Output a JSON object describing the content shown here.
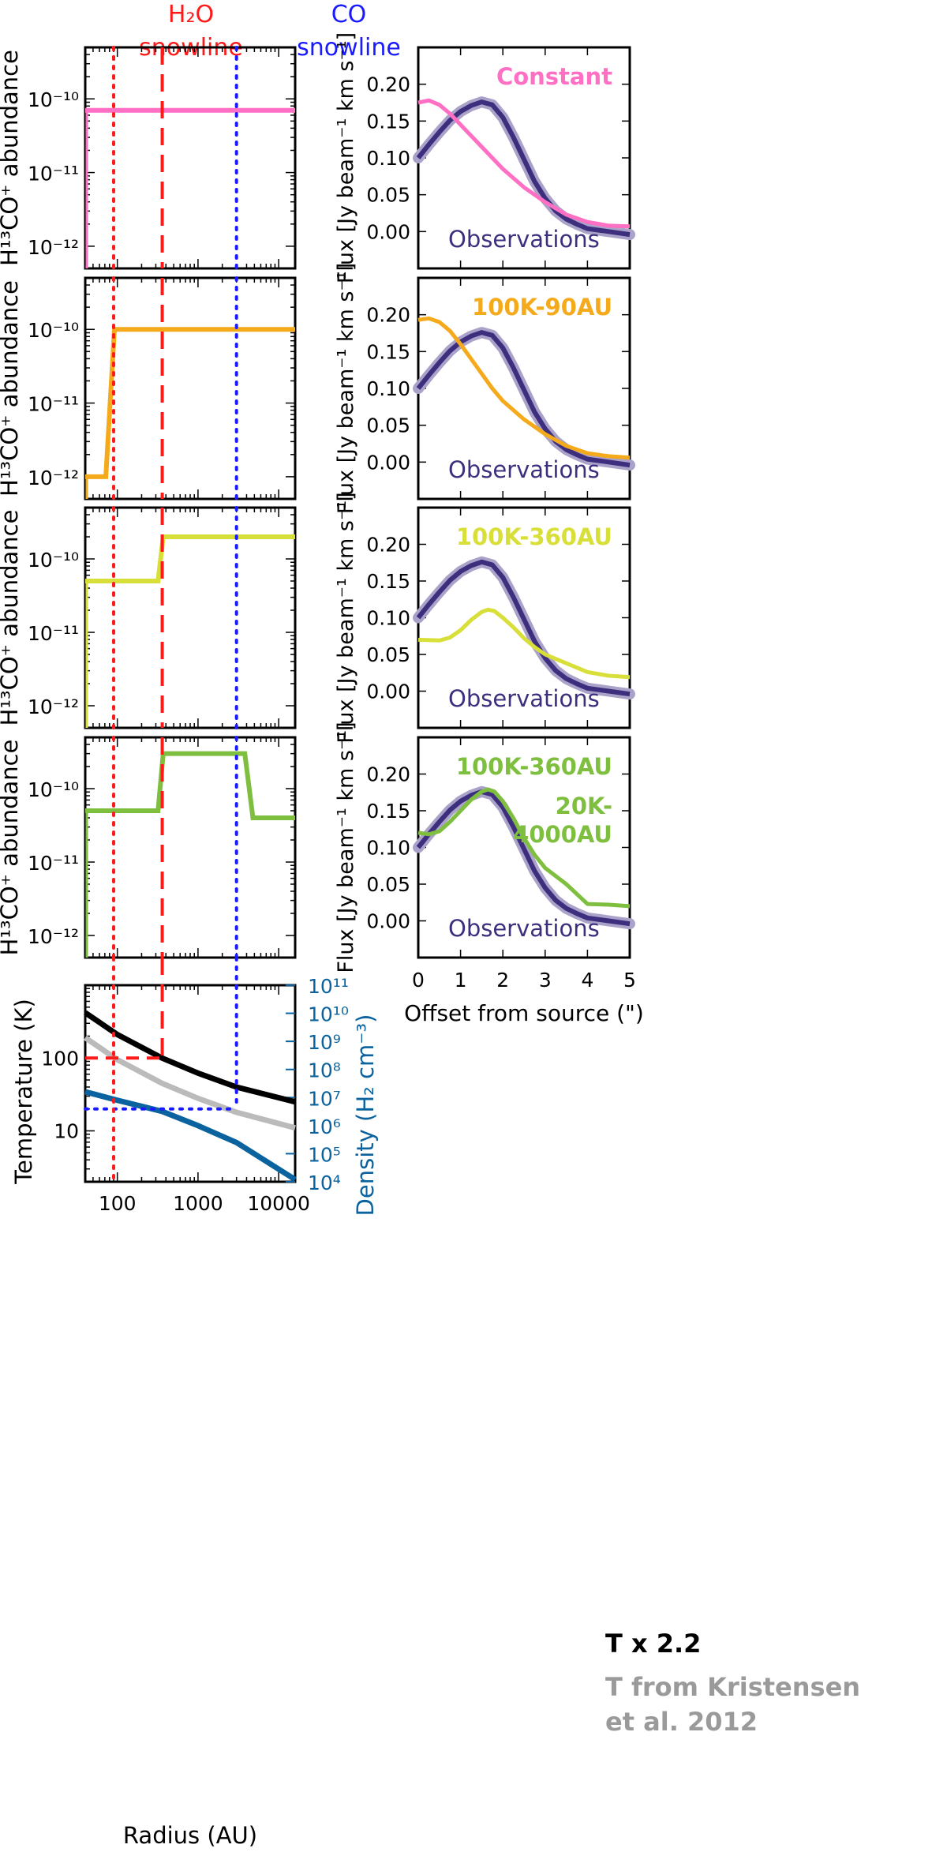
{
  "header": {
    "h2o_line1": "H₂O",
    "h2o_line2": "snowline",
    "co_line1": "CO",
    "co_line2": "snowline"
  },
  "colors": {
    "h2o": "#ff1a1a",
    "co": "#1a1aff",
    "constant": "#ff6fc3",
    "model_90au": "#f5aa1c",
    "model_360au": "#d8df38",
    "model_two_jump": "#7fbf3f",
    "observations": "#3d2f7e",
    "observations_band": "#aaa2c8",
    "temperature": "#000000",
    "temperature_kristensen": "#bbbbbb",
    "density": "#0a639f"
  },
  "chart_data": [
    {
      "panel": "abundance-constant",
      "type": "line",
      "xscale": "log",
      "yscale": "log",
      "xlim": [
        40,
        16000
      ],
      "ylim": [
        5e-13,
        5e-10
      ],
      "ylabel": "H¹³CO⁺ abundance",
      "yticks": [
        "10⁻¹⁰",
        "10⁻¹¹",
        "10⁻¹²"
      ],
      "series": [
        {
          "name": "Constant",
          "color": "#ff6fc3",
          "x": [
            40,
            16000
          ],
          "y": [
            7e-11,
            7e-11
          ]
        }
      ]
    },
    {
      "panel": "flux-constant",
      "type": "line",
      "xlim": [
        0,
        5
      ],
      "ylim": [
        -0.05,
        0.25
      ],
      "ylabel": "Flux [Jy beam⁻¹ km s⁻¹]",
      "yticks": [
        "0.20",
        "0.15",
        "0.10",
        "0.05",
        "0.00"
      ],
      "model_label": "Constant",
      "obs_label": "Observations",
      "series": [
        {
          "name": "Observations",
          "x": [
            0,
            0.25,
            0.5,
            0.75,
            1,
            1.25,
            1.5,
            1.75,
            2,
            2.25,
            2.5,
            2.75,
            3,
            3.25,
            3.5,
            3.75,
            4,
            4.5,
            5
          ],
          "y": [
            0.1,
            0.118,
            0.135,
            0.151,
            0.163,
            0.171,
            0.176,
            0.172,
            0.155,
            0.128,
            0.098,
            0.068,
            0.045,
            0.028,
            0.017,
            0.01,
            0.004,
            0,
            -0.004
          ]
        },
        {
          "name": "Constant",
          "x": [
            0,
            0.25,
            0.5,
            0.75,
            1,
            1.25,
            1.5,
            1.75,
            2,
            2.5,
            3,
            3.5,
            4,
            4.5,
            5
          ],
          "y": [
            0.175,
            0.178,
            0.172,
            0.16,
            0.145,
            0.13,
            0.115,
            0.1,
            0.085,
            0.06,
            0.04,
            0.023,
            0.013,
            0.008,
            0.007
          ]
        }
      ]
    },
    {
      "panel": "abundance-100K-90AU",
      "type": "line",
      "xscale": "log",
      "yscale": "log",
      "xlim": [
        40,
        16000
      ],
      "ylim": [
        5e-13,
        5e-10
      ],
      "ylabel": "H¹³CO⁺ abundance",
      "yticks": [
        "10⁻¹⁰",
        "10⁻¹¹",
        "10⁻¹²"
      ],
      "series": [
        {
          "name": "100K-90AU",
          "color": "#f5aa1c",
          "x": [
            40,
            72,
            92,
            16000
          ],
          "y": [
            1e-12,
            1e-12,
            1e-10,
            1e-10
          ]
        }
      ]
    },
    {
      "panel": "flux-100K-90AU",
      "type": "line",
      "xlim": [
        0,
        5
      ],
      "ylim": [
        -0.05,
        0.25
      ],
      "ylabel": "Flux [Jy beam⁻¹ km s⁻¹]",
      "yticks": [
        "0.20",
        "0.15",
        "0.10",
        "0.05",
        "0.00"
      ],
      "model_label": "100K-90AU",
      "obs_label": "Observations",
      "series": [
        {
          "name": "Observations",
          "x": [
            0,
            0.25,
            0.5,
            0.75,
            1,
            1.25,
            1.5,
            1.75,
            2,
            2.25,
            2.5,
            2.75,
            3,
            3.25,
            3.5,
            3.75,
            4,
            4.5,
            5
          ],
          "y": [
            0.1,
            0.118,
            0.135,
            0.151,
            0.163,
            0.171,
            0.176,
            0.172,
            0.155,
            0.128,
            0.098,
            0.068,
            0.045,
            0.028,
            0.017,
            0.01,
            0.004,
            0,
            -0.004
          ]
        },
        {
          "name": "100K-90AU",
          "x": [
            0,
            0.25,
            0.5,
            0.75,
            1,
            1.25,
            1.5,
            1.75,
            2,
            2.5,
            3,
            3.5,
            4,
            4.5,
            5
          ],
          "y": [
            0.193,
            0.195,
            0.19,
            0.178,
            0.16,
            0.14,
            0.12,
            0.1,
            0.083,
            0.058,
            0.038,
            0.022,
            0.012,
            0.008,
            0.006
          ]
        }
      ]
    },
    {
      "panel": "abundance-100K-360AU",
      "type": "line",
      "xscale": "log",
      "yscale": "log",
      "xlim": [
        40,
        16000
      ],
      "ylim": [
        5e-13,
        5e-10
      ],
      "ylabel": "H¹³CO⁺ abundance",
      "yticks": [
        "10⁻¹⁰",
        "10⁻¹¹",
        "10⁻¹²"
      ],
      "series": [
        {
          "name": "100K-360AU",
          "color": "#d8df38",
          "x": [
            40,
            320,
            370,
            16000
          ],
          "y": [
            5e-11,
            5e-11,
            2e-10,
            2e-10
          ]
        }
      ]
    },
    {
      "panel": "flux-100K-360AU",
      "type": "line",
      "xlim": [
        0,
        5
      ],
      "ylim": [
        -0.05,
        0.25
      ],
      "ylabel": "Flux [Jy beam⁻¹ km s⁻¹]",
      "yticks": [
        "0.20",
        "0.15",
        "0.10",
        "0.05",
        "0.00"
      ],
      "model_label": "100K-360AU",
      "obs_label": "Observations",
      "series": [
        {
          "name": "Observations",
          "x": [
            0,
            0.25,
            0.5,
            0.75,
            1,
            1.25,
            1.5,
            1.75,
            2,
            2.25,
            2.5,
            2.75,
            3,
            3.25,
            3.5,
            3.75,
            4,
            4.5,
            5
          ],
          "y": [
            0.1,
            0.118,
            0.135,
            0.151,
            0.163,
            0.171,
            0.176,
            0.172,
            0.155,
            0.128,
            0.098,
            0.068,
            0.045,
            0.028,
            0.017,
            0.01,
            0.004,
            0,
            -0.004
          ]
        },
        {
          "name": "100K-360AU",
          "x": [
            0,
            0.5,
            0.75,
            1,
            1.25,
            1.5,
            1.65,
            1.8,
            2,
            2.25,
            2.5,
            2.75,
            3,
            3.5,
            4,
            4.5,
            5
          ],
          "y": [
            0.07,
            0.069,
            0.073,
            0.083,
            0.097,
            0.108,
            0.111,
            0.109,
            0.1,
            0.087,
            0.072,
            0.06,
            0.05,
            0.038,
            0.026,
            0.021,
            0.019
          ]
        }
      ]
    },
    {
      "panel": "abundance-two-jump",
      "type": "line",
      "xscale": "log",
      "yscale": "log",
      "xlim": [
        40,
        16000
      ],
      "ylim": [
        5e-13,
        5e-10
      ],
      "ylabel": "H¹³CO⁺ abundance",
      "yticks": [
        "10⁻¹⁰",
        "10⁻¹¹",
        "10⁻¹²"
      ],
      "series": [
        {
          "name": "100K-360AU / 20K-4000AU",
          "color": "#7fbf3f",
          "x": [
            40,
            320,
            370,
            3800,
            4800,
            16000
          ],
          "y": [
            5e-11,
            5e-11,
            3e-10,
            3e-10,
            4e-11,
            4e-11
          ]
        }
      ]
    },
    {
      "panel": "flux-two-jump",
      "type": "line",
      "xlim": [
        0,
        5
      ],
      "ylim": [
        -0.05,
        0.25
      ],
      "ylabel": "Flux [Jy beam⁻¹ km s⁻¹]",
      "yticks": [
        "0.20",
        "0.15",
        "0.10",
        "0.05",
        "0.00"
      ],
      "xticks": [
        "0",
        "1",
        "2",
        "3",
        "4",
        "5"
      ],
      "xlabel": "Offset from source (\")",
      "model_label_1": "100K-360AU",
      "model_label_2": "20K-",
      "model_label_3": "4000AU",
      "obs_label": "Observations",
      "series": [
        {
          "name": "Observations",
          "x": [
            0,
            0.25,
            0.5,
            0.75,
            1,
            1.25,
            1.5,
            1.75,
            2,
            2.25,
            2.5,
            2.75,
            3,
            3.25,
            3.5,
            3.75,
            4,
            4.5,
            5
          ],
          "y": [
            0.1,
            0.118,
            0.135,
            0.151,
            0.163,
            0.171,
            0.176,
            0.172,
            0.155,
            0.128,
            0.098,
            0.068,
            0.045,
            0.028,
            0.017,
            0.01,
            0.004,
            0,
            -0.004
          ]
        },
        {
          "name": "100K-360AU + 20K-4000AU",
          "x": [
            0,
            0.25,
            0.5,
            0.75,
            1,
            1.25,
            1.5,
            1.65,
            1.8,
            2,
            2.25,
            2.5,
            2.75,
            3,
            3.5,
            4,
            4.5,
            5
          ],
          "y": [
            0.12,
            0.118,
            0.122,
            0.135,
            0.15,
            0.165,
            0.176,
            0.179,
            0.176,
            0.163,
            0.14,
            0.113,
            0.09,
            0.072,
            0.05,
            0.023,
            0.022,
            0.02
          ]
        }
      ]
    },
    {
      "panel": "temperature-density",
      "type": "line",
      "xscale": "log",
      "yscale": "log",
      "xlim": [
        40,
        16000
      ],
      "ylim": [
        2,
        1000
      ],
      "y2lim": [
        10000.0,
        100000000000.0
      ],
      "xticks": [
        "100",
        "1000",
        "10000"
      ],
      "xlabel": "Radius (AU)",
      "ylabel": "Temperature (K)",
      "yticks": [
        "100",
        "10"
      ],
      "y2label": "Density (H₂ cm⁻³)",
      "y2ticks": [
        "10¹¹",
        "10¹⁰",
        "10⁹",
        "10⁸",
        "10⁷",
        "10⁶",
        "10⁵",
        "10⁴"
      ],
      "series": [
        {
          "name": "T x 2.2",
          "x": [
            40,
            100,
            360,
            1000,
            3000,
            16000
          ],
          "y": [
            420,
            210,
            100,
            62,
            40,
            25
          ]
        },
        {
          "name": "T from Kristensen et al. 2012",
          "x": [
            40,
            100,
            360,
            1000,
            3000,
            16000
          ],
          "y": [
            190,
            95,
            45,
            28,
            18,
            11
          ]
        },
        {
          "name": "Density",
          "axis": "y2",
          "x": [
            40,
            100,
            360,
            1000,
            3000,
            16000
          ],
          "y": [
            16000000.0,
            8000000.0,
            3200000.0,
            1000000.0,
            250000.0,
            12000.0
          ]
        }
      ],
      "guides": {
        "temperature_k": 100,
        "h2o_radius_au": 360,
        "co_radius_au": 3000,
        "co_temperature_k": 20,
        "h2o_guide_radius_au": 90
      }
    }
  ],
  "legend": {
    "line1": "T x 2.2",
    "line2": "T from Kristensen",
    "line3": "et al. 2012"
  }
}
